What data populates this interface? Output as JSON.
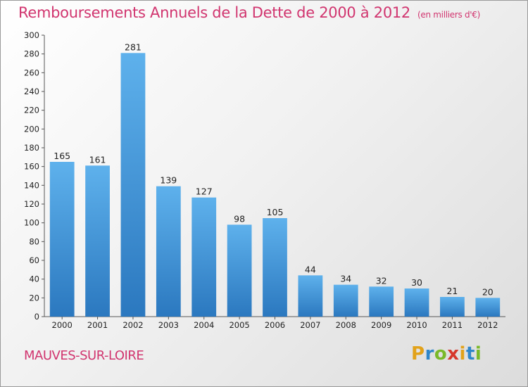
{
  "chart_data": {
    "type": "bar",
    "title": "Remboursements Annuels de la Dette de 2000 à 2012",
    "subtitle": "(en milliers d'€)",
    "categories": [
      "2000",
      "2001",
      "2002",
      "2003",
      "2004",
      "2005",
      "2006",
      "2007",
      "2008",
      "2009",
      "2010",
      "2011",
      "2012"
    ],
    "values": [
      165,
      161,
      281,
      139,
      127,
      98,
      105,
      44,
      34,
      32,
      30,
      21,
      20
    ],
    "ylim": [
      0,
      300
    ],
    "yticks": [
      0,
      20,
      40,
      60,
      80,
      100,
      120,
      140,
      160,
      180,
      200,
      220,
      240,
      260,
      280,
      300
    ],
    "xlabel": "",
    "ylabel": "",
    "grid": false,
    "bar_color": "#3d8fd6"
  },
  "location": "MAUVES-SUR-LOIRE",
  "logo": {
    "text": "Proxiti",
    "letters": [
      "P",
      "r",
      "o",
      "x",
      "i",
      "t",
      "i"
    ],
    "colors": [
      "#e2a21a",
      "#2f86c9",
      "#7ab92a",
      "#d6372c",
      "#e2a21a",
      "#2f86c9",
      "#7ab92a"
    ]
  },
  "colors": {
    "title": "#d1356f"
  }
}
